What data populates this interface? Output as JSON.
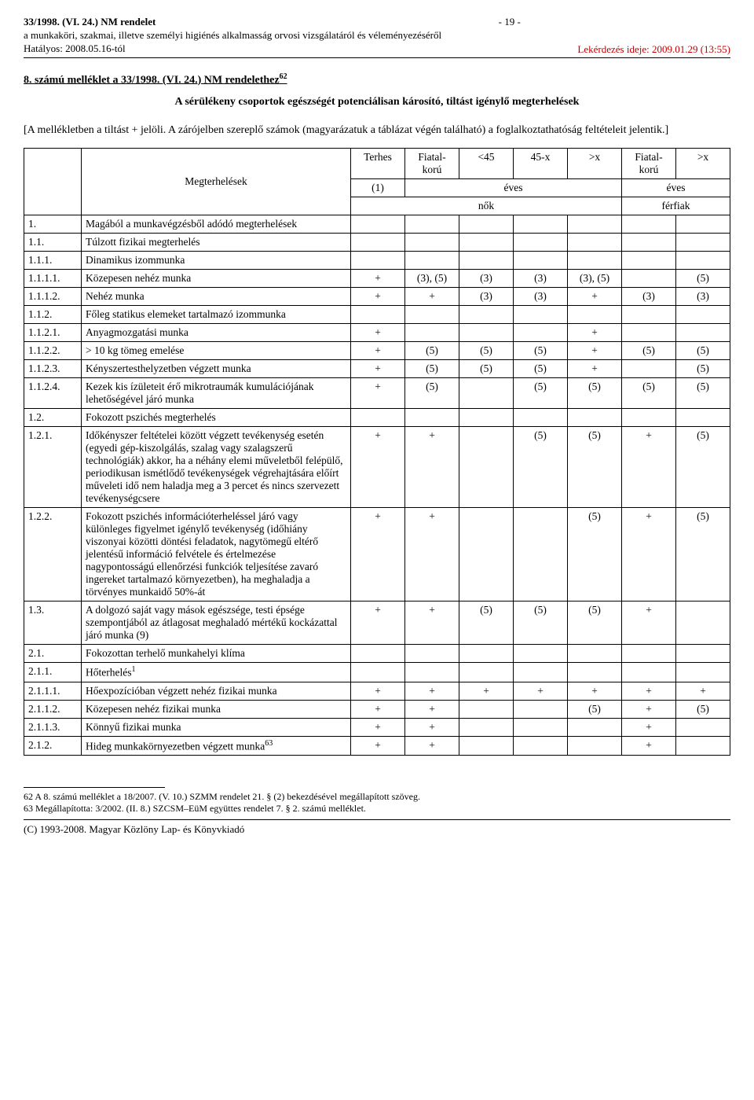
{
  "header": {
    "doc_ref": "33/1998. (VI. 24.) NM rendelet",
    "doc_desc": "a munkaköri, szakmai, illetve személyi higiénés alkalmasság orvosi vizsgálatáról és véleményezéséről",
    "effective": "Hatályos: 2008.05.16-tól",
    "page_num": "- 19 -",
    "query_time": "Lekérdezés ideje: 2009.01.29 (13:55)"
  },
  "section_heading": "8. számú melléklet a 33/1998. (VI. 24.) NM rendelethez",
  "section_heading_sup": "62",
  "subtitle": "A sérülékeny csoportok egészségét potenciálisan károsító, tiltást igénylő megterhelések",
  "intro": "[A mellékletben a tiltást + jelöli. A zárójelben szereplő számok (magyarázatuk a táblázat végén található) a foglalkoztathatóság feltételeit jelentik.]",
  "table_headers": {
    "megterhelesek": "Megterhelések",
    "terhes": "Terhes",
    "fiatalkoru": "Fiatal-korú",
    "lt45": "<45",
    "range45x": "45-x",
    "gtx": ">x",
    "fiatalkoru2": "Fiatal-korú",
    "gtx2": ">x",
    "one": "(1)",
    "eves": "éves",
    "nok": "nők",
    "ferfiak": "férfiak"
  },
  "rows": [
    {
      "n": "1.",
      "d": "Magából a munkavégzésből adódó megterhelések",
      "v": [
        "",
        "",
        "",
        "",
        "",
        "",
        ""
      ]
    },
    {
      "n": "1.1.",
      "d": "Túlzott fizikai megterhelés",
      "v": [
        "",
        "",
        "",
        "",
        "",
        "",
        ""
      ]
    },
    {
      "n": "1.1.1.",
      "d": "Dinamikus izommunka",
      "v": [
        "",
        "",
        "",
        "",
        "",
        "",
        ""
      ]
    },
    {
      "n": "1.1.1.1.",
      "d": "Közepesen nehéz munka",
      "v": [
        "+",
        "(3), (5)",
        "(3)",
        "(3)",
        "(3), (5)",
        "",
        "(5)"
      ]
    },
    {
      "n": "1.1.1.2.",
      "d": "Nehéz munka",
      "v": [
        "+",
        "+",
        "(3)",
        "(3)",
        "+",
        "(3)",
        "(3)"
      ]
    },
    {
      "n": "1.1.2.",
      "d": "Főleg statikus elemeket tartalmazó izommunka",
      "v": [
        "",
        "",
        "",
        "",
        "",
        "",
        ""
      ]
    },
    {
      "n": "1.1.2.1.",
      "d": "Anyagmozgatási munka",
      "v": [
        "+",
        "",
        "",
        "",
        "+",
        "",
        ""
      ]
    },
    {
      "n": "1.1.2.2.",
      "d": "> 10 kg tömeg emelése",
      "v": [
        "+",
        "(5)",
        "(5)",
        "(5)",
        "+",
        "(5)",
        "(5)"
      ]
    },
    {
      "n": "1.1.2.3.",
      "d": "Kényszertesthelyzetben végzett munka",
      "v": [
        "+",
        "(5)",
        "(5)",
        "(5)",
        "+",
        "",
        "(5)"
      ]
    },
    {
      "n": "1.1.2.4.",
      "d": "Kezek kis ízületeit érő mikrotraumák kumulációjának lehetőségével járó munka",
      "v": [
        "+",
        "(5)",
        "",
        "(5)",
        "(5)",
        "(5)",
        "(5)"
      ]
    },
    {
      "n": "1.2.",
      "d": "Fokozott pszichés megterhelés",
      "v": [
        "",
        "",
        "",
        "",
        "",
        "",
        ""
      ]
    },
    {
      "n": "1.2.1.",
      "d": "Időkényszer feltételei között végzett tevékenység esetén (egyedi gép-kiszolgálás, szalag vagy szalagszerű technológiák) akkor, ha a néhány elemi műveletből felépülő, periodikusan ismétlődő tevékenységek végrehajtására előírt műveleti idő nem haladja meg a 3 percet és nincs szervezett tevékenységcsere",
      "v": [
        "+",
        "+",
        "",
        "(5)",
        "(5)",
        "+",
        "(5)"
      ]
    },
    {
      "n": "1.2.2.",
      "d": "Fokozott pszichés információterheléssel járó vagy különleges figyelmet igénylő tevékenység (időhiány viszonyai közötti döntési feladatok, nagytömegű eltérő jelentésű információ felvétele és értelmezése nagypontosságú ellenőrzési funkciók teljesítése zavaró ingereket tartalmazó környezetben), ha meghaladja a törvényes munkaidő 50%-át",
      "v": [
        "+",
        "+",
        "",
        "",
        "(5)",
        "+",
        "(5)"
      ]
    },
    {
      "n": "1.3.",
      "d": "A dolgozó saját vagy mások egészsége, testi épsége szempontjából az átlagosat meghaladó mértékű kockázattal járó munka (9)",
      "v": [
        "+",
        "+",
        "(5)",
        "(5)",
        "(5)",
        "+",
        ""
      ]
    },
    {
      "n": "2.1.",
      "d": "Fokozottan terhelő munkahelyi klíma",
      "v": [
        "",
        "",
        "",
        "",
        "",
        "",
        ""
      ]
    },
    {
      "n": "2.1.1.",
      "d": "Hőterhelés",
      "sup": "1",
      "v": [
        "",
        "",
        "",
        "",
        "",
        "",
        ""
      ]
    },
    {
      "n": "2.1.1.1.",
      "d": "Hőexpozícióban végzett nehéz fizikai munka",
      "v": [
        "+",
        "+",
        "+",
        "+",
        "+",
        "+",
        "+"
      ]
    },
    {
      "n": "2.1.1.2.",
      "d": "Közepesen nehéz fizikai munka",
      "v": [
        "+",
        "+",
        "",
        "",
        "(5)",
        "+",
        "(5)"
      ]
    },
    {
      "n": "2.1.1.3.",
      "d": "Könnyű fizikai munka",
      "v": [
        "+",
        "+",
        "",
        "",
        "",
        "+",
        ""
      ]
    },
    {
      "n": "2.1.2.",
      "d": "Hideg munkakörnyezetben végzett munka",
      "sup": "63",
      "v": [
        "+",
        "+",
        "",
        "",
        "",
        "+",
        ""
      ]
    }
  ],
  "footnotes": {
    "fn62": "62 A 8. számú melléklet a 18/2007. (V. 10.) SZMM rendelet 21. § (2) bekezdésével megállapított szöveg.",
    "fn63": "63 Megállapította: 3/2002. (II. 8.) SZCSM–EüM együttes rendelet 7. § 2. számú melléklet."
  },
  "footer": "(C) 1993-2008. Magyar Közlöny Lap- és Könyvkiadó"
}
